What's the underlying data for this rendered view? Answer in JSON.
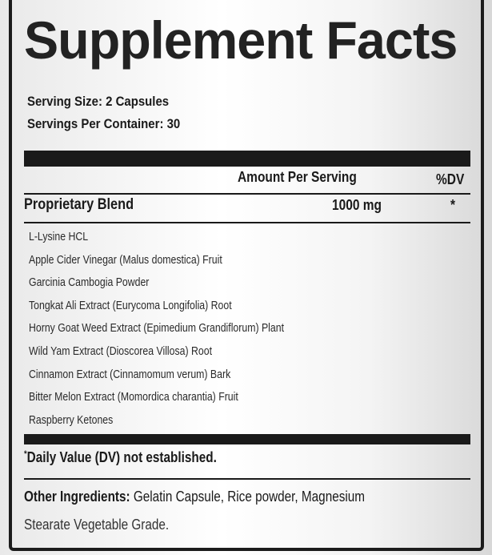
{
  "title": "Supplement Facts",
  "serving_size": "Serving Size: 2 Capsules",
  "servings_per_container": "Servings Per Container: 30",
  "table": {
    "amount_header": "Amount Per Serving",
    "dv_header": "%DV",
    "blend_name": "Proprietary Blend",
    "blend_amount": "1000 mg",
    "blend_dv": "*",
    "ingredients": [
      "L-Lysine HCL",
      "Apple Cider Vinegar (Malus domestica) Fruit",
      "Garcinia Cambogia Powder",
      "Tongkat Ali Extract (Eurycoma Longifolia) Root",
      "Horny Goat Weed Extract (Epimedium Grandiflorum) Plant",
      "Wild Yam Extract (Dioscorea Villosa) Root",
      "Cinnamon Extract (Cinnamomum verum) Bark",
      "Bitter Melon Extract (Momordica charantia) Fruit",
      "Raspberry Ketones"
    ]
  },
  "footnote": {
    "asterisk": "*",
    "text": "Daily Value (DV) not established."
  },
  "other": {
    "label": "Other Ingredients:",
    "line1": " Gelatin Capsule, Rice powder, Magnesium",
    "line2": "Stearate Vegetable Grade."
  }
}
